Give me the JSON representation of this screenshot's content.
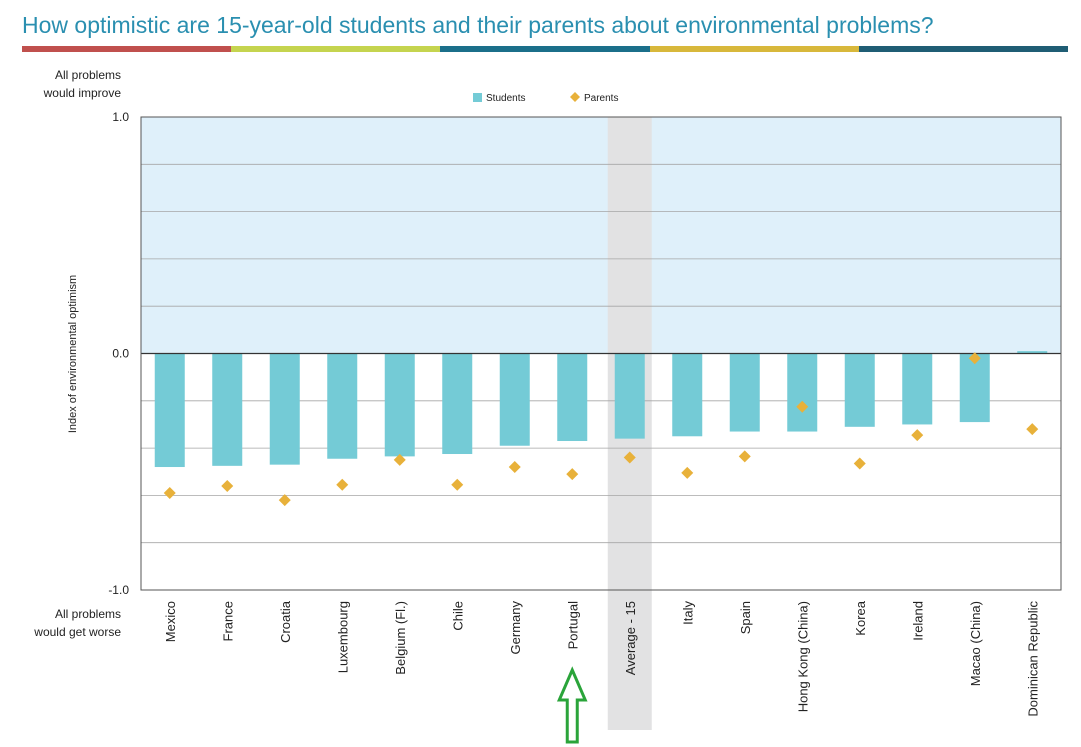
{
  "title": "How optimistic are 15-year-old students and their parents about environmental problems?",
  "title_bar_colors": [
    "#c0504d",
    "#c5d44f",
    "#1b6f8a",
    "#d8b83b",
    "#1f5d74"
  ],
  "colors": {
    "plot_bg": "#dff0fa",
    "students": "#74cbd6",
    "parents": "#e8b13a",
    "average_band": "#e2e2e3",
    "grid": "#a6a6a6",
    "arrow": "#2aa43a"
  },
  "top_label_lines": [
    "All problems",
    "would improve"
  ],
  "bottom_label_lines": [
    "All problems",
    "would get worse"
  ],
  "chart_data": {
    "type": "bar",
    "title": "How optimistic are 15-year-old students and their parents about environmental problems?",
    "ylabel": "Index of environmental optimism",
    "xlabel": "",
    "ylim": [
      -1.0,
      1.0
    ],
    "yticks": [
      {
        "value": 1.0,
        "label": "1.0"
      },
      {
        "value": 0.0,
        "label": "0.0"
      },
      {
        "value": -1.0,
        "label": "-1.0"
      }
    ],
    "gridlines": [
      0.8,
      0.6,
      0.4,
      0.2,
      -0.2,
      -0.4,
      -0.6,
      -0.8
    ],
    "legend": [
      "Students",
      "Parents"
    ],
    "legend_position": "top-center",
    "categories": [
      "Mexico",
      "France",
      "Croatia",
      "Luxembourg",
      "Belgium (Fl.)",
      "Chile",
      "Germany",
      "Portugal",
      "Average - 15",
      "Italy",
      "Spain",
      "Hong Kong (China)",
      "Korea",
      "Ireland",
      "Macao (China)",
      "Dominican Republic"
    ],
    "highlight_category": "Average - 15",
    "annotated_category": "Portugal",
    "series": [
      {
        "name": "Students",
        "kind": "bar",
        "values": [
          -0.48,
          -0.475,
          -0.47,
          -0.445,
          -0.435,
          -0.425,
          -0.39,
          -0.37,
          -0.36,
          -0.35,
          -0.33,
          -0.33,
          -0.31,
          -0.3,
          -0.29,
          0.01
        ]
      },
      {
        "name": "Parents",
        "kind": "marker",
        "values": [
          -0.59,
          -0.56,
          -0.62,
          -0.555,
          -0.45,
          -0.555,
          -0.48,
          -0.51,
          -0.44,
          -0.505,
          -0.435,
          -0.225,
          -0.465,
          -0.345,
          -0.02,
          -0.32
        ]
      }
    ]
  }
}
